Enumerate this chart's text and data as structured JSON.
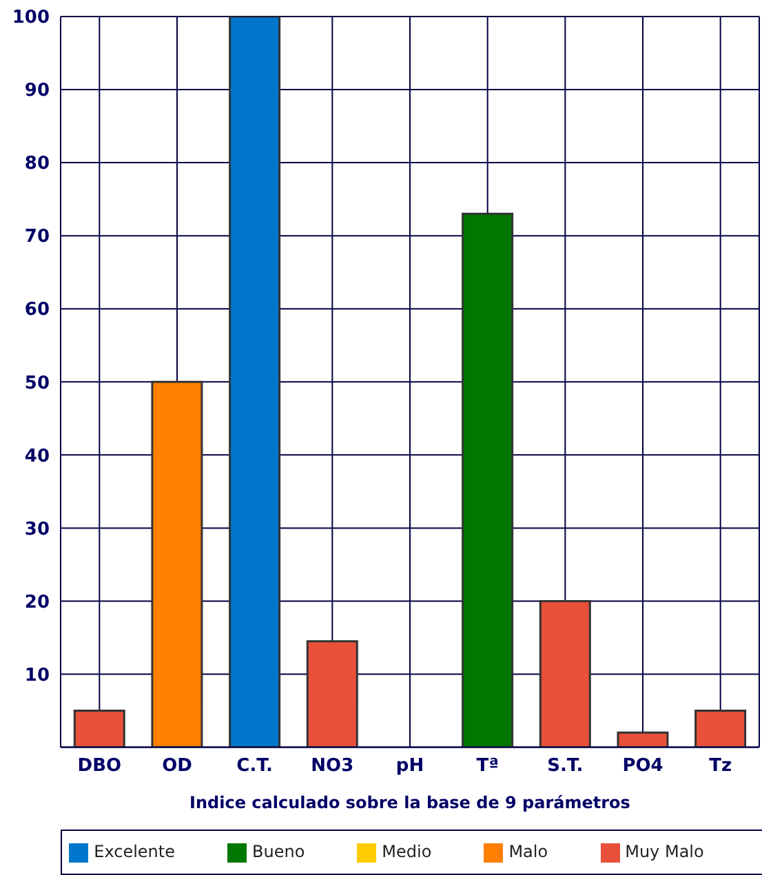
{
  "chart_data": {
    "type": "bar",
    "xlabel": "Indice calculado sobre la base de 9 parámetros",
    "categories": [
      "DBO",
      "OD",
      "C.T.",
      "NO3",
      "pH",
      "Tª",
      "S.T.",
      "PO4",
      "Tz"
    ],
    "stacked": true,
    "ylim": [
      0,
      100
    ],
    "yticks": [
      {
        "value": 0,
        "label": null
      },
      10,
      20,
      30,
      40,
      50,
      60,
      70,
      80,
      90,
      100
    ],
    "grid": true,
    "legend": "bottom",
    "series": [
      {
        "name": "Excelente",
        "color": "#0077cc",
        "values": [
          null,
          null,
          100,
          null,
          null,
          null,
          null,
          null,
          null
        ]
      },
      {
        "name": "Bueno",
        "color": "#007700",
        "values": [
          null,
          null,
          null,
          null,
          null,
          73,
          null,
          null,
          null
        ]
      },
      {
        "name": "Medio",
        "color": "#ffcc00",
        "values": [
          null,
          null,
          null,
          null,
          null,
          null,
          null,
          null,
          null
        ]
      },
      {
        "name": "Malo",
        "color": "#ff7f00",
        "values": [
          null,
          50,
          null,
          null,
          null,
          null,
          null,
          null,
          null
        ]
      },
      {
        "name": "Muy Malo",
        "color": "#e8503a",
        "values": [
          5,
          null,
          null,
          14.5,
          null,
          null,
          20,
          2,
          5
        ]
      }
    ]
  }
}
